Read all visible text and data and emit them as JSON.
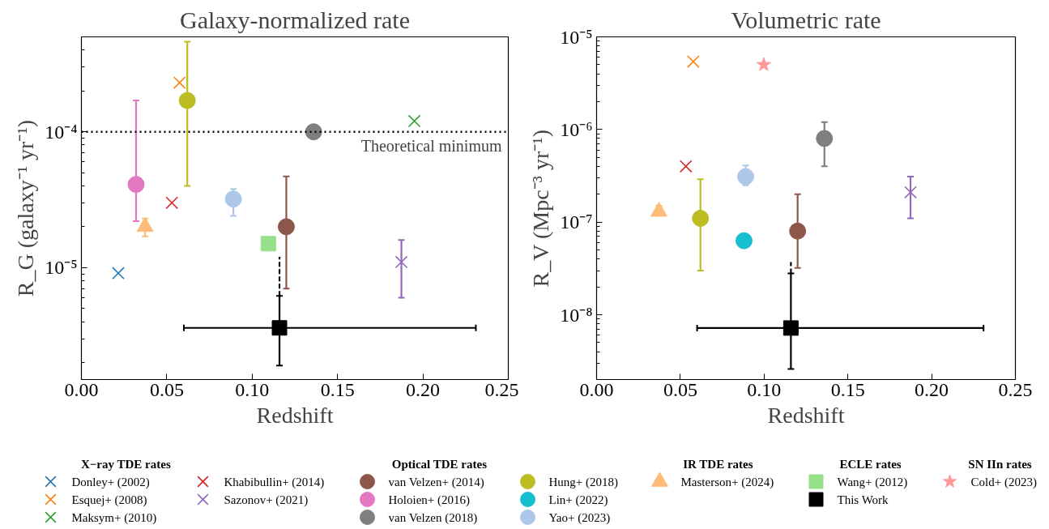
{
  "chart_data": [
    {
      "type": "scatter",
      "title": "Galaxy-normalized rate",
      "xlabel": "Redshift",
      "ylabel": "R_G (galaxy⁻¹ yr⁻¹)",
      "log": "y",
      "legend": "bottom",
      "xlim": [
        0,
        0.25
      ],
      "ylim": [
        1.5e-06,
        0.0005
      ],
      "xticks": [
        {
          "value": 0,
          "label": "0.00"
        },
        {
          "value": 0.05,
          "label": "0.05"
        },
        {
          "value": 0.1,
          "label": "0.10"
        },
        {
          "value": 0.15,
          "label": "0.15"
        },
        {
          "value": 0.2,
          "label": "0.20"
        },
        {
          "value": 0.25,
          "label": "0.25"
        }
      ],
      "yticks": [
        {
          "value": 1e-05,
          "label": "10⁻⁵"
        },
        {
          "value": 0.0001,
          "label": "10⁻⁴"
        }
      ],
      "ref_lines": [
        {
          "axis": "y",
          "value": 0.0001,
          "label": "Theoretical minimum",
          "color": "#000000",
          "line_style": "dotted"
        }
      ],
      "series": [
        {
          "name": "Donley+ (2002)",
          "color": "#1f77b4",
          "marker": "cross",
          "x": [
            0.0216
          ],
          "values": [
            9.1e-06
          ]
        },
        {
          "name": "Esquej+ (2008)",
          "color": "#ff7f0e",
          "marker": "cross",
          "x": [
            0.0575
          ],
          "values": [
            0.00023
          ]
        },
        {
          "name": "Maksym+ (2010)",
          "color": "#2ca02c",
          "marker": "cross",
          "x": [
            0.195
          ],
          "values": [
            0.00012
          ]
        },
        {
          "name": "Khabibullin+ (2014)",
          "color": "#d62728",
          "marker": "cross",
          "x": [
            0.053
          ],
          "values": [
            3e-05
          ]
        },
        {
          "name": "Sazonov+ (2021)",
          "color": "#9467bd",
          "marker": "cross",
          "x": [
            0.1874
          ],
          "values": [
            1.1e-05
          ],
          "errors": [
            [
              6e-06,
              1.6e-05
            ]
          ]
        },
        {
          "name": "van Velzen+ (2014)",
          "color": "#8c564b",
          "marker": "circle",
          "x": [
            0.12
          ],
          "values": [
            2e-05
          ],
          "errors": [
            [
              7e-06,
              4.7e-05
            ]
          ]
        },
        {
          "name": "Holoien+ (2016)",
          "color": "#e377c2",
          "marker": "circle",
          "x": [
            0.032
          ],
          "values": [
            4.1e-05
          ],
          "errors": [
            [
              2.2e-05,
              0.00017
            ]
          ]
        },
        {
          "name": "van Velzen (2018)",
          "color": "#7f7f7f",
          "marker": "circle",
          "x": [
            0.136
          ],
          "values": [
            0.0001
          ]
        },
        {
          "name": "Hung+ (2018)",
          "color": "#bcbd22",
          "marker": "circle",
          "x": [
            0.062
          ],
          "values": [
            0.00017
          ],
          "errors": [
            [
              4e-05,
              0.00046
            ]
          ]
        },
        {
          "name": "Yao+ (2023)",
          "color": "#aec7e8",
          "marker": "circle",
          "x": [
            0.089
          ],
          "values": [
            3.2e-05
          ],
          "errors": [
            [
              2.4e-05,
              3.8e-05
            ]
          ]
        },
        {
          "name": "Masterson+ (2024)",
          "color": "#ffbb78",
          "marker": "triangle",
          "x": [
            0.0373
          ],
          "values": [
            2e-05
          ],
          "errors": [
            [
              1.7e-05,
              2.3e-05
            ]
          ]
        },
        {
          "name": "Wang+ (2012)",
          "color": "#98df8a",
          "marker": "square",
          "x": [
            0.1095
          ],
          "values": [
            1.5e-05
          ]
        },
        {
          "type": "line",
          "color": "#000000",
          "marker": "none",
          "line_style": "dashed",
          "x": [
            0.116,
            0.116
          ],
          "values": [
            6.2e-06,
            1.2e-05
          ]
        },
        {
          "name": "This Work",
          "color": "#000000",
          "marker": "square",
          "x": [
            0.116
          ],
          "values": [
            3.6e-06
          ],
          "errors": [
            [
              1.9e-06,
              6.2e-06
            ]
          ],
          "xerrors": [
            [
              0.06,
              0.231
            ]
          ]
        }
      ]
    },
    {
      "type": "scatter",
      "title": "Volumetric rate",
      "xlabel": "Redshift",
      "ylabel": "R_V (Mpc⁻³ yr⁻¹)",
      "log": "y",
      "legend": "bottom",
      "xlim": [
        0,
        0.25
      ],
      "ylim": [
        2e-09,
        1e-05
      ],
      "xticks": [
        {
          "value": 0,
          "label": "0.00"
        },
        {
          "value": 0.05,
          "label": "0.05"
        },
        {
          "value": 0.1,
          "label": "0.10"
        },
        {
          "value": 0.15,
          "label": "0.15"
        },
        {
          "value": 0.2,
          "label": "0.20"
        },
        {
          "value": 0.25,
          "label": "0.25"
        }
      ],
      "yticks": [
        {
          "value": 1e-08,
          "label": "10⁻⁸"
        },
        {
          "value": 1e-07,
          "label": "10⁻⁷"
        },
        {
          "value": 1e-06,
          "label": "10⁻⁶"
        },
        {
          "value": 1e-05,
          "label": "10⁻⁵"
        }
      ],
      "annotations": [
        "X−ray TDE rates",
        "Optical TDE rates",
        "IR TDE rates",
        "ECLE rates",
        "SN IIn rates"
      ],
      "series": [
        {
          "color": "#ff7f0e",
          "marker": "cross",
          "x": [
            0.0577
          ],
          "values": [
            5.4e-06
          ]
        },
        {
          "color": "#d62728",
          "marker": "cross",
          "x": [
            0.0533
          ],
          "values": [
            4e-07
          ]
        },
        {
          "color": "#9467bd",
          "marker": "cross",
          "x": [
            0.1874
          ],
          "values": [
            2.1e-07
          ],
          "errors": [
            [
              1.1e-07,
              3.1e-07
            ]
          ]
        },
        {
          "color": "#8c564b",
          "marker": "circle",
          "x": [
            0.12
          ],
          "values": [
            8e-08
          ],
          "errors": [
            [
              3.2e-08,
              2e-07
            ]
          ]
        },
        {
          "color": "#7f7f7f",
          "marker": "circle",
          "x": [
            0.136
          ],
          "values": [
            8e-07
          ],
          "errors": [
            [
              4e-07,
              1.2e-06
            ]
          ]
        },
        {
          "color": "#bcbd22",
          "marker": "circle",
          "x": [
            0.062
          ],
          "values": [
            1.1e-07
          ],
          "errors": [
            [
              3e-08,
              2.9e-07
            ]
          ]
        },
        {
          "name": "Lin+ (2022)",
          "color": "#17becf",
          "marker": "circle",
          "x": [
            0.088
          ],
          "values": [
            6.3e-08
          ]
        },
        {
          "color": "#aec7e8",
          "marker": "circle",
          "x": [
            0.089
          ],
          "values": [
            3.1e-07
          ],
          "errors": [
            [
              2.5e-07,
              4.1e-07
            ]
          ]
        },
        {
          "color": "#ffbb78",
          "marker": "triangle",
          "x": [
            0.0372
          ],
          "values": [
            1.3e-07
          ],
          "errors": [
            [
              1.2e-07,
              1.5e-07
            ]
          ]
        },
        {
          "type": "line",
          "color": "#000000",
          "marker": "none",
          "line_style": "dashed",
          "x": [
            0.116,
            0.116
          ],
          "values": [
            2.8e-08,
            3.7e-08
          ]
        },
        {
          "color": "#000000",
          "marker": "square",
          "x": [
            0.116
          ],
          "values": [
            7.2e-09
          ],
          "errors": [
            [
              2.6e-09,
              2.8e-08
            ]
          ],
          "xerrors": [
            [
              0.06,
              0.231
            ]
          ]
        },
        {
          "name": "Cold+ (2023)",
          "color": "#ff9896",
          "marker": "star",
          "x": [
            0.0998
          ],
          "values": [
            5e-06
          ]
        }
      ]
    }
  ]
}
